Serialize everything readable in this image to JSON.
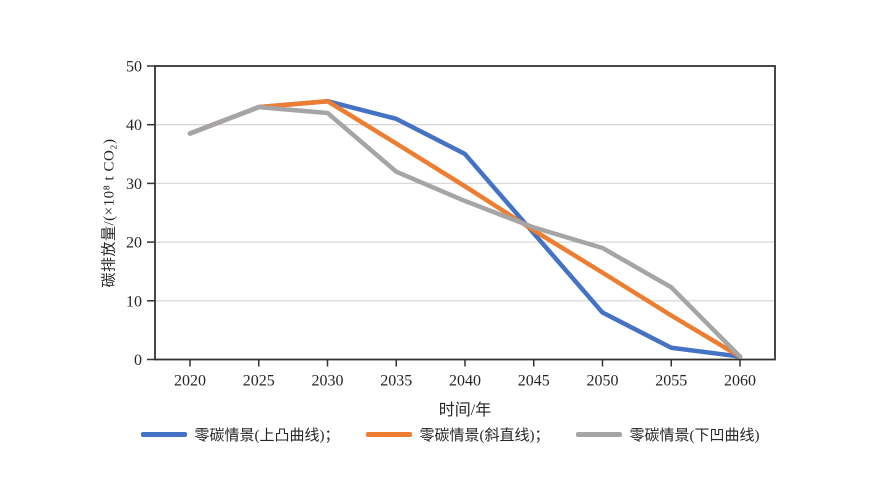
{
  "chart_data": {
    "type": "line",
    "title": "",
    "xlabel": "时间/年",
    "ylabel": "碳排放量/(×10⁸ t CO₂)",
    "categories": [
      "2020",
      "2025",
      "2030",
      "2035",
      "2040",
      "2045",
      "2050",
      "2055",
      "2060"
    ],
    "ylim": [
      0,
      50
    ],
    "yticks": [
      0,
      10,
      20,
      30,
      40,
      50
    ],
    "grid": true,
    "legend_position": "bottom",
    "series": [
      {
        "key": "convex",
        "name": "零碳情景(上凸曲线)",
        "color": "#4472C4",
        "values": [
          38.5,
          43,
          44,
          41,
          35,
          21.5,
          8,
          2,
          0.5
        ]
      },
      {
        "key": "straight",
        "name": "零碳情景(斜直线)",
        "color": "#ED7D31",
        "values": [
          38.5,
          43,
          44,
          36.8,
          29.5,
          22,
          14.8,
          7.5,
          0.5
        ]
      },
      {
        "key": "concave",
        "name": "零碳情景(下凹曲线)",
        "color": "#A5A5A5",
        "values": [
          38.5,
          43,
          42,
          32,
          27,
          22.5,
          19,
          12.3,
          0.5
        ]
      }
    ]
  },
  "legend": {
    "items": [
      {
        "label": "零碳情景(上凸曲线)；"
      },
      {
        "label": "零碳情景(斜直线)；"
      },
      {
        "label": "零碳情景(下凹曲线)"
      }
    ]
  },
  "colors": {
    "background": "#FFFFFF",
    "plot_border": "#333333",
    "gridline": "#D9D9D9",
    "tick": "#333333",
    "tick_label": "#262626"
  }
}
